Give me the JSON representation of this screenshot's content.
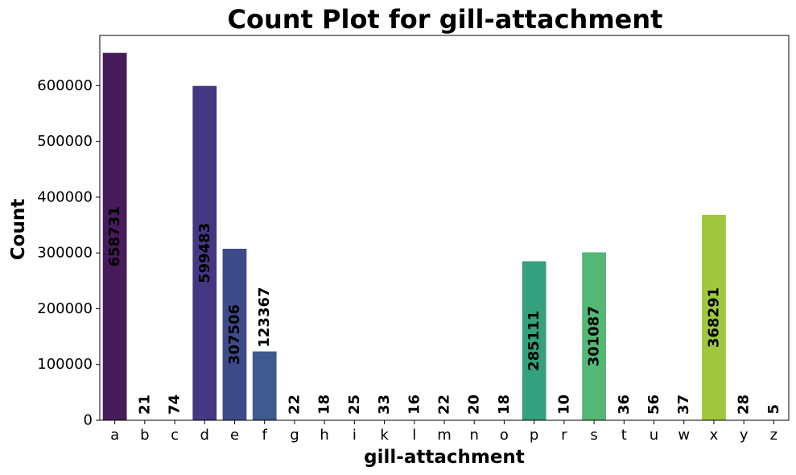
{
  "chart_data": {
    "type": "bar",
    "title": "Count Plot for gill-attachment",
    "xlabel": "gill-attachment",
    "ylabel": "Count",
    "categories": [
      "a",
      "b",
      "c",
      "d",
      "e",
      "f",
      "g",
      "h",
      "i",
      "k",
      "l",
      "m",
      "n",
      "o",
      "p",
      "r",
      "s",
      "t",
      "u",
      "w",
      "x",
      "y",
      "z"
    ],
    "values": [
      658731,
      21,
      74,
      599483,
      307506,
      123367,
      22,
      18,
      25,
      33,
      16,
      22,
      20,
      18,
      285111,
      10,
      301087,
      36,
      56,
      37,
      368291,
      28,
      5
    ],
    "data_labels": [
      "658731",
      "21",
      "74",
      "599483",
      "307506",
      "123367",
      "22",
      "18",
      "25",
      "33",
      "16",
      "22",
      "20",
      "18",
      "285111",
      "10",
      "301087",
      "36",
      "56",
      "37",
      "368291",
      "28",
      "5"
    ],
    "ylim": [
      0,
      690000
    ],
    "yticks": [
      0,
      100000,
      200000,
      300000,
      400000,
      500000,
      600000
    ],
    "ytick_labels": [
      "0",
      "100000",
      "200000",
      "300000",
      "400000",
      "500000",
      "600000"
    ],
    "colors": [
      "#481b5a",
      "#472d7b",
      "#472d7b",
      "#453781",
      "#3f4a8a",
      "#3e5a8e",
      "#375a8c",
      "#31688e",
      "#2c738e",
      "#2a788e",
      "#25848e",
      "#21918c",
      "#1f9e89",
      "#1fa187",
      "#35a07e",
      "#3fbc73",
      "#55b774",
      "#66c54f",
      "#7ad151",
      "#8cd74a",
      "#a0c73f",
      "#b5de2b",
      "#fde725"
    ],
    "grid": false,
    "legend": "none"
  }
}
